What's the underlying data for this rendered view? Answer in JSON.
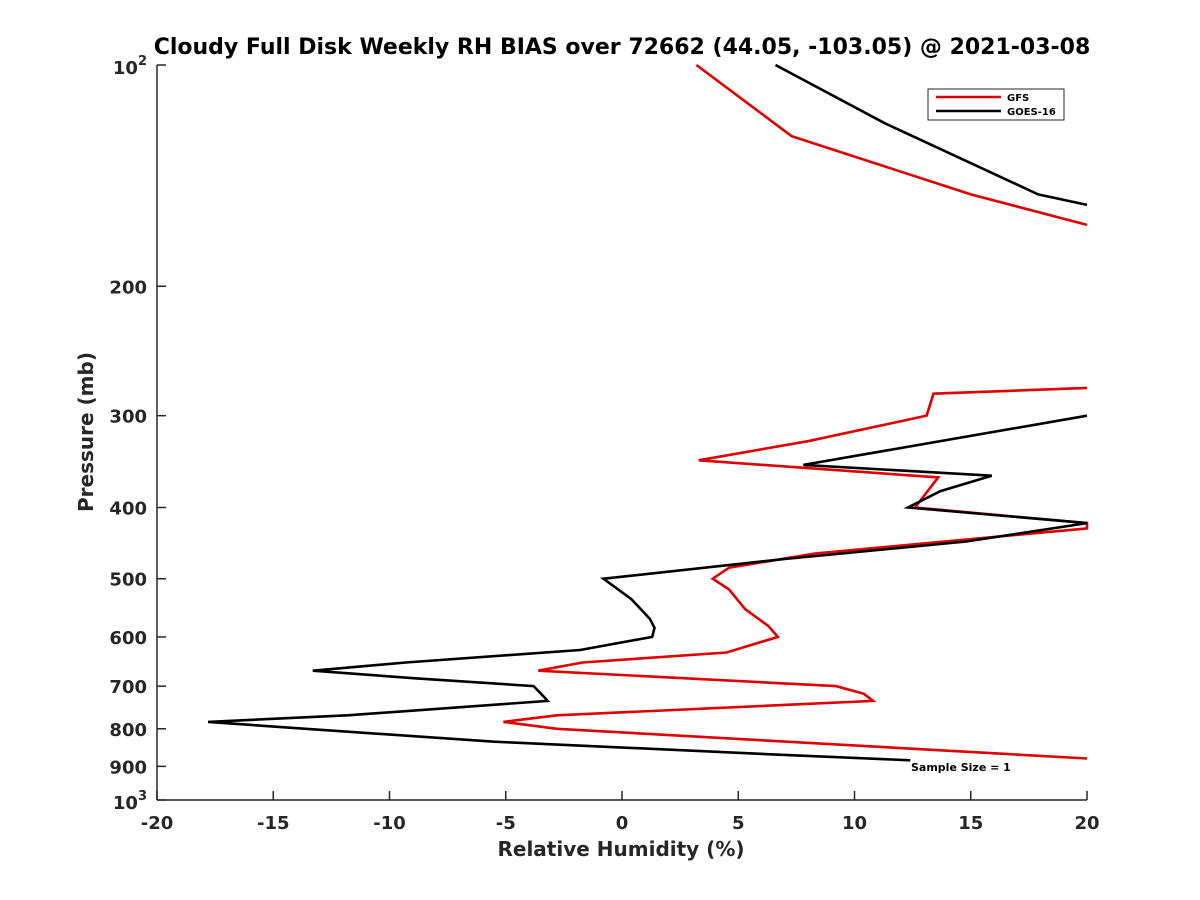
{
  "chart_data": {
    "type": "line",
    "title": "Cloudy Full Disk Weekly RH BIAS over 72662 (44.05, -103.05) @ 2021-03-08",
    "xlabel": "Relative Humidity (%)",
    "ylabel": "Pressure (mb)",
    "xlim": [
      -20,
      20
    ],
    "ylim": [
      100,
      1000
    ],
    "y_scale": "log",
    "y_reversed": true,
    "grid": false,
    "legend_position": "top-right",
    "x_ticks": [
      "-20",
      "-15",
      "-10",
      "-5",
      "0",
      "5",
      "10",
      "15",
      "20"
    ],
    "y_ticks": [
      {
        "base": "10",
        "exp": "2"
      },
      {
        "label": "200"
      },
      {
        "label": "300"
      },
      {
        "label": "400"
      },
      {
        "label": "500"
      },
      {
        "label": "600"
      },
      {
        "label": "700"
      },
      {
        "label": "800"
      },
      {
        "label": "900"
      },
      {
        "base": "10",
        "exp": "3"
      }
    ],
    "annotation": "Sample Size = 1",
    "series": [
      {
        "name": "GFS",
        "color": "#e00000",
        "points": [
          [
            3.2,
            100
          ],
          [
            7.3,
            125
          ],
          [
            15.0,
            150
          ],
          [
            20.0,
            165
          ],
          [
            null,
            null
          ],
          [
            20.0,
            275
          ],
          [
            13.4,
            280
          ],
          [
            13.1,
            300
          ],
          [
            8.0,
            325
          ],
          [
            3.3,
            345
          ],
          [
            13.6,
            364
          ],
          [
            12.6,
            400
          ],
          [
            20.0,
            420
          ],
          [
            20.0,
            427
          ],
          [
            8.3,
            462
          ],
          [
            4.6,
            483
          ],
          [
            3.9,
            500
          ],
          [
            4.6,
            517
          ],
          [
            5.3,
            550
          ],
          [
            6.3,
            580
          ],
          [
            6.7,
            600
          ],
          [
            4.5,
            630
          ],
          [
            -1.7,
            650
          ],
          [
            -3.6,
            667
          ],
          [
            9.2,
            700
          ],
          [
            10.4,
            717
          ],
          [
            10.8,
            733
          ],
          [
            -2.8,
            767
          ],
          [
            -5.1,
            783
          ],
          [
            -2.8,
            800
          ],
          [
            20.0,
            878
          ]
        ]
      },
      {
        "name": "GOES-16",
        "color": "#000000",
        "points": [
          [
            6.6,
            100
          ],
          [
            11.3,
            120
          ],
          [
            17.9,
            150
          ],
          [
            20.0,
            155
          ],
          [
            null,
            null
          ],
          [
            20.0,
            300
          ],
          [
            7.8,
            350
          ],
          [
            15.9,
            362
          ],
          [
            13.7,
            380
          ],
          [
            12.3,
            400
          ],
          [
            20.0,
            420
          ],
          [
            14.8,
            445
          ],
          [
            7.0,
            470
          ],
          [
            -0.8,
            500
          ],
          [
            0.4,
            533
          ],
          [
            1.2,
            567
          ],
          [
            1.4,
            583
          ],
          [
            1.3,
            600
          ],
          [
            -1.8,
            625
          ],
          [
            -9.3,
            650
          ],
          [
            -13.3,
            667
          ],
          [
            -8.9,
            683
          ],
          [
            -3.8,
            700
          ],
          [
            -3.3,
            727
          ],
          [
            -3.2,
            733
          ],
          [
            -11.8,
            767
          ],
          [
            -17.8,
            783
          ],
          [
            -13.6,
            800
          ],
          [
            -5.5,
            833
          ],
          [
            6.5,
            867
          ],
          [
            12.4,
            883
          ]
        ]
      }
    ]
  }
}
